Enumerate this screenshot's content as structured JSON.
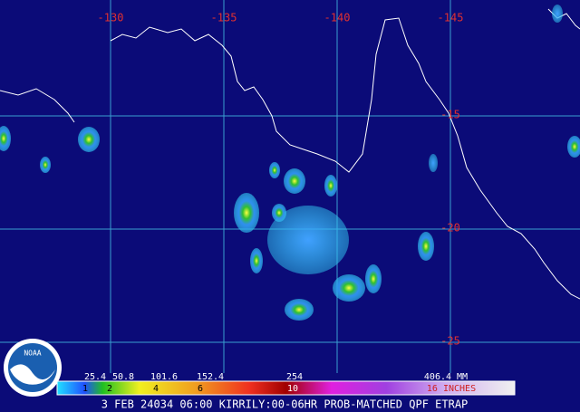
{
  "map": {
    "lon_labels": [
      "-130",
      "-135",
      "-140",
      "-145"
    ],
    "lat_labels": [
      "-15",
      "-20",
      "-25"
    ]
  },
  "legend": {
    "mm_labels": [
      "25.4",
      "50.8",
      "101.6",
      "152.4",
      "254",
      "406.4 MM"
    ],
    "inch_labels": [
      "1",
      "2",
      "4",
      "6",
      "10",
      "16 INCHES"
    ]
  },
  "caption": "3 FEB 24034 06:00 KIRRILY:00-06HR PROB-MATCHED QPF ETRAP",
  "logo": "NOAA"
}
